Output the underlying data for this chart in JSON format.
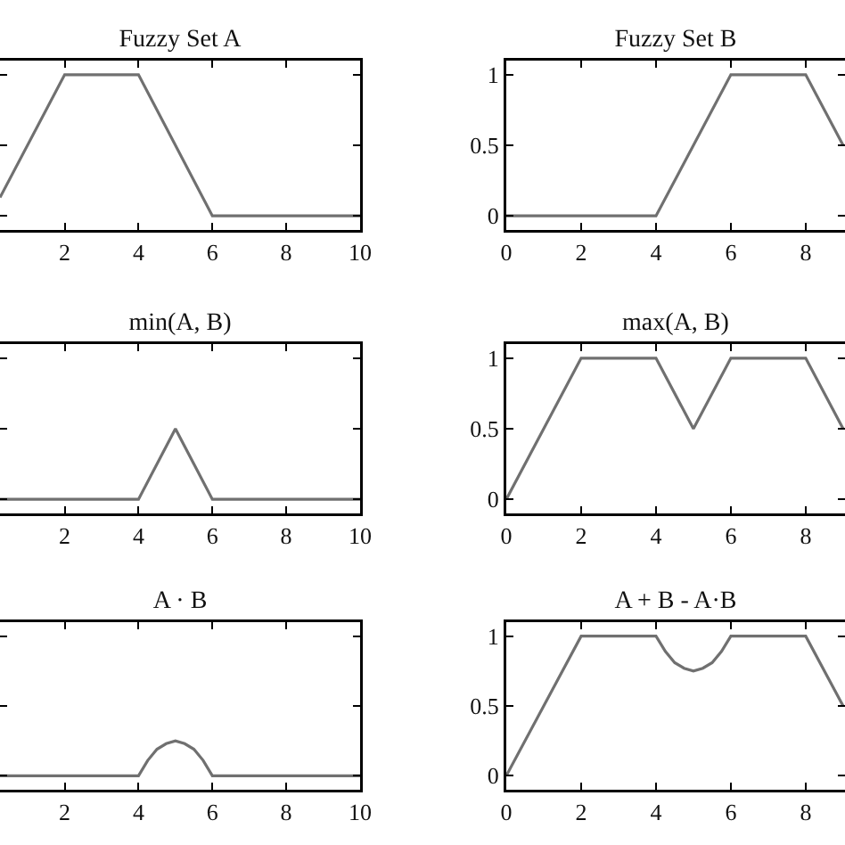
{
  "chart_data": [
    {
      "type": "line",
      "title": "Fuzzy Set A",
      "x": [
        0.25,
        2,
        4,
        6,
        10
      ],
      "values": [
        0.13,
        1,
        1,
        0,
        0
      ],
      "color": "#707070",
      "xlim": [
        0.25,
        10
      ],
      "xticks": [
        2,
        4,
        6,
        8,
        10
      ],
      "ylim": [
        -0.1,
        1.1
      ],
      "yticks": [
        {
          "value": 0,
          "label": null
        },
        {
          "value": 0.5,
          "label": null
        },
        {
          "value": 1,
          "label": null
        }
      ],
      "tick_labels": "x",
      "grid": false
    },
    {
      "type": "line",
      "title": "Fuzzy Set B",
      "x": [
        0,
        4,
        6,
        8,
        9
      ],
      "values": [
        0,
        0,
        1,
        1,
        0.5
      ],
      "color": "#707070",
      "xlim": [
        0,
        9.05
      ],
      "xticks": [
        0,
        2,
        4,
        6,
        8
      ],
      "ylim": [
        -0.1,
        1.1
      ],
      "yticks": [
        0,
        0.5,
        1
      ],
      "grid": false
    },
    {
      "type": "line",
      "title": "min(A, B)",
      "x": [
        0.25,
        4,
        5,
        6,
        10
      ],
      "values": [
        0,
        0,
        0.5,
        0,
        0
      ],
      "color": "#707070",
      "xlim": [
        0.25,
        10
      ],
      "xticks": [
        2,
        4,
        6,
        8,
        10
      ],
      "ylim": [
        -0.1,
        1.1
      ],
      "yticks": [
        {
          "value": 0,
          "label": null
        },
        {
          "value": 0.5,
          "label": null
        },
        {
          "value": 1,
          "label": null
        }
      ],
      "tick_labels": "x",
      "grid": false
    },
    {
      "type": "line",
      "title": "max(A, B)",
      "x": [
        0,
        2,
        4,
        5,
        6,
        8,
        9
      ],
      "values": [
        0,
        1,
        1,
        0.5,
        1,
        1,
        0.5
      ],
      "color": "#707070",
      "xlim": [
        0,
        9.05
      ],
      "xticks": [
        0,
        2,
        4,
        6,
        8
      ],
      "ylim": [
        -0.1,
        1.1
      ],
      "yticks": [
        0,
        0.5,
        1
      ],
      "grid": false
    },
    {
      "type": "line",
      "title": "A · B",
      "x": [
        0.25,
        4,
        4.25,
        4.5,
        4.75,
        5,
        5.25,
        5.5,
        5.75,
        6,
        10
      ],
      "values": [
        0,
        0,
        0.11,
        0.19,
        0.23,
        0.25,
        0.23,
        0.19,
        0.11,
        0,
        0
      ],
      "color": "#707070",
      "xlim": [
        0.25,
        10
      ],
      "xticks": [
        2,
        4,
        6,
        8,
        10
      ],
      "ylim": [
        -0.1,
        1.1
      ],
      "yticks": [
        {
          "value": 0,
          "label": null
        },
        {
          "value": 0.5,
          "label": null
        },
        {
          "value": 1,
          "label": null
        }
      ],
      "tick_labels": "x",
      "grid": false
    },
    {
      "type": "line",
      "title": "A + B - A·B",
      "x": [
        0,
        2,
        4,
        4.25,
        4.5,
        4.75,
        5,
        5.25,
        5.5,
        5.75,
        6,
        8,
        9
      ],
      "values": [
        0,
        1,
        1,
        0.89,
        0.81,
        0.77,
        0.75,
        0.77,
        0.81,
        0.89,
        1,
        1,
        0.5
      ],
      "color": "#707070",
      "xlim": [
        0,
        9.05
      ],
      "xticks": [
        0,
        2,
        4,
        6,
        8
      ],
      "ylim": [
        -0.1,
        1.1
      ],
      "yticks": [
        0,
        0.5,
        1
      ],
      "grid": false
    }
  ]
}
